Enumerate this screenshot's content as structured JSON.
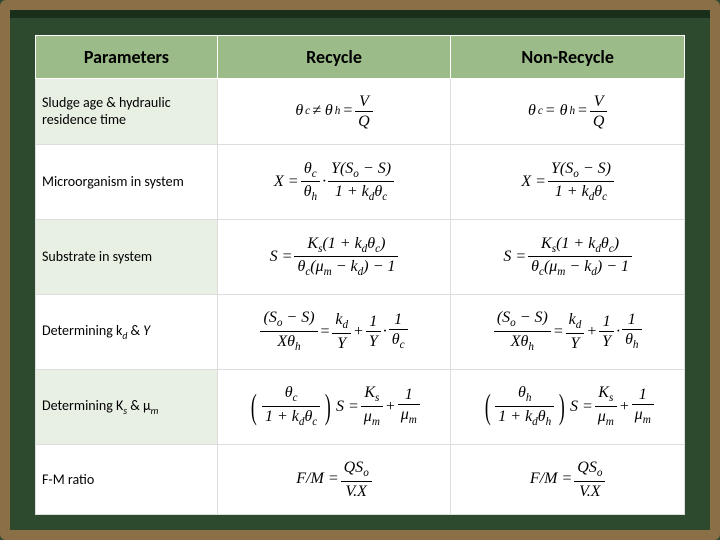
{
  "headers": {
    "col1": "Parameters",
    "col2": "Recycle",
    "col3": "Non-Recycle"
  },
  "rows": [
    {
      "param": "Sludge age & hydraulic residence time"
    },
    {
      "param": "Microorganism in system"
    },
    {
      "param": "Substrate in system"
    },
    {
      "param_html": "Determining k<span class='sub'>d</span> & <i>Y</i>"
    },
    {
      "param_html": "Determining K<span class='sub'>s</span> & μ<span class='sub'>m</span>"
    },
    {
      "param": "F-M ratio"
    }
  ],
  "style": {
    "header_bg": "#9bbb89",
    "row_odd_bg": "#e8efe3",
    "row_even_bg": "#ffffff",
    "board_bg": "#2d4a2e",
    "frame_color": "#8b6f47",
    "font_param": 14,
    "font_header": 18,
    "font_formula": 16
  }
}
